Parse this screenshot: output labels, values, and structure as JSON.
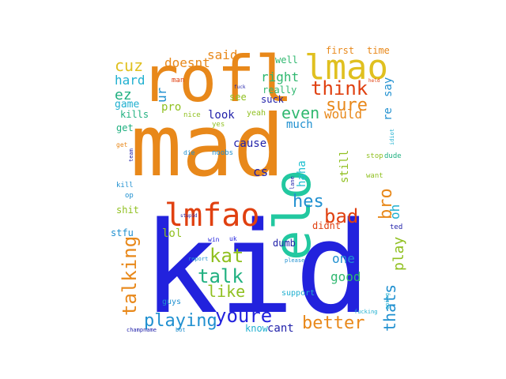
{
  "words": [
    {
      "text": "mad",
      "color": "#e8881a"
    },
    {
      "text": "kid",
      "color": "#2222dd"
    },
    {
      "text": "rofl",
      "color": "#e8881a"
    },
    {
      "text": "lmao",
      "color": "#e0c020"
    },
    {
      "text": "elo",
      "color": "#22c8a0"
    },
    {
      "text": "lmfao",
      "color": "#e04010"
    },
    {
      "text": "bro",
      "color": "#e8881a"
    },
    {
      "text": "think",
      "color": "#e04010"
    },
    {
      "text": "sure",
      "color": "#e8881a"
    },
    {
      "text": "even",
      "color": "#30b870"
    },
    {
      "text": "would",
      "color": "#e8881a"
    },
    {
      "text": "hes",
      "color": "#2090d0"
    },
    {
      "text": "bad",
      "color": "#e04010"
    },
    {
      "text": "kat",
      "color": "#90c020"
    },
    {
      "text": "talk",
      "color": "#20b080"
    },
    {
      "text": "like",
      "color": "#90c020"
    },
    {
      "text": "talking",
      "color": "#e8881a"
    },
    {
      "text": "playing",
      "color": "#2090d0"
    },
    {
      "text": "youre",
      "color": "#2222dd"
    },
    {
      "text": "better",
      "color": "#e8881a"
    },
    {
      "text": "thats",
      "color": "#2090d0"
    },
    {
      "text": "play",
      "color": "#90c020"
    },
    {
      "text": "cuz",
      "color": "#e0c020"
    },
    {
      "text": "doesnt",
      "color": "#e8881a"
    },
    {
      "text": "said",
      "color": "#e8881a"
    },
    {
      "text": "hard",
      "color": "#20b0d0"
    },
    {
      "text": "ez",
      "color": "#20b080"
    },
    {
      "text": "ur",
      "color": "#2090d0"
    },
    {
      "text": "right",
      "color": "#30b870"
    },
    {
      "text": "pro",
      "color": "#90c020"
    },
    {
      "text": "look",
      "color": "#2222aa"
    },
    {
      "text": "much",
      "color": "#2090d0"
    },
    {
      "text": "cause",
      "color": "#2222aa"
    },
    {
      "text": "haha",
      "color": "#20c0d0"
    },
    {
      "text": "still",
      "color": "#90c020"
    },
    {
      "text": "oh",
      "color": "#20b0d0"
    },
    {
      "text": "one",
      "color": "#2090d0"
    },
    {
      "text": "good",
      "color": "#30b870"
    },
    {
      "text": "lol",
      "color": "#90c020"
    },
    {
      "text": "cs",
      "color": "#2222aa"
    },
    {
      "text": "game",
      "color": "#20b0d0"
    },
    {
      "text": "kills",
      "color": "#20b080"
    },
    {
      "text": "well",
      "color": "#30b870"
    },
    {
      "text": "really",
      "color": "#30b870"
    },
    {
      "text": "suck",
      "color": "#2222aa"
    },
    {
      "text": "see",
      "color": "#90c020"
    },
    {
      "text": "say",
      "color": "#2090d0"
    },
    {
      "text": "re",
      "color": "#2090d0"
    },
    {
      "text": "first",
      "color": "#e8881a"
    },
    {
      "text": "time",
      "color": "#e8881a"
    },
    {
      "text": "dumb",
      "color": "#2222aa"
    },
    {
      "text": "didnt",
      "color": "#e04010"
    },
    {
      "text": "cant",
      "color": "#2222aa"
    },
    {
      "text": "know",
      "color": "#20b0d0"
    },
    {
      "text": "shit",
      "color": "#90c020"
    },
    {
      "text": "get",
      "color": "#20b080"
    },
    {
      "text": "stfu",
      "color": "#2090d0"
    },
    {
      "text": "guys",
      "color": "#2090d0"
    },
    {
      "text": "support",
      "color": "#20b0d0"
    },
    {
      "text": "yeah",
      "color": "#90c020"
    },
    {
      "text": "yes",
      "color": "#90c020"
    },
    {
      "text": "nice",
      "color": "#90c020"
    },
    {
      "text": "noobs",
      "color": "#2090d0"
    },
    {
      "text": "man",
      "color": "#e04010"
    },
    {
      "text": "stop",
      "color": "#90c020"
    },
    {
      "text": "dude",
      "color": "#20b080"
    },
    {
      "text": "want",
      "color": "#90c020"
    },
    {
      "text": "ted",
      "color": "#2222aa"
    },
    {
      "text": "kill",
      "color": "#2090d0"
    },
    {
      "text": "op",
      "color": "#2090d0"
    },
    {
      "text": "team",
      "color": "#2222aa"
    },
    {
      "text": "win",
      "color": "#2222dd"
    },
    {
      "text": "uk",
      "color": "#2222dd"
    },
    {
      "text": "idiot",
      "color": "#20b0d0"
    },
    {
      "text": "going",
      "color": "#20b0d0"
    },
    {
      "text": "fucking",
      "color": "#20b0d0"
    },
    {
      "text": "please",
      "color": "#2090d0"
    },
    {
      "text": "lane",
      "color": "#2222aa"
    },
    {
      "text": "report",
      "color": "#2090d0"
    },
    {
      "text": "bot",
      "color": "#2090d0"
    },
    {
      "text": "champname",
      "color": "#2222aa"
    },
    {
      "text": "get",
      "color": "#e8881a"
    },
    {
      "text": "die",
      "color": "#2090d0"
    },
    {
      "text": "stupid",
      "color": "#2222aa"
    },
    {
      "text": "held",
      "color": "#e04010"
    },
    {
      "text": "fuck",
      "color": "#2222aa"
    }
  ]
}
